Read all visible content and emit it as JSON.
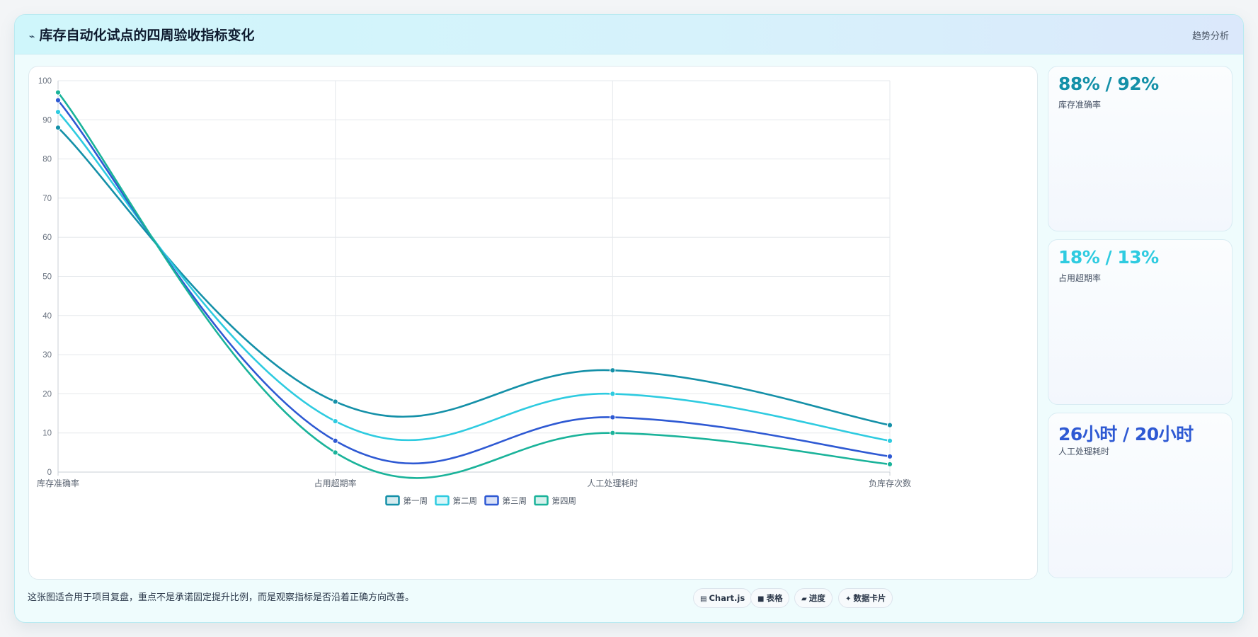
{
  "header": {
    "icon": "trend-icon",
    "title": "库存自动化试点的四周验收指标变化",
    "badge": "趋势分析"
  },
  "chart_data": {
    "type": "line",
    "categories": [
      "库存准确率",
      "占用超期率",
      "人工处理耗时",
      "负库存次数"
    ],
    "series": [
      {
        "name": "第一周",
        "color": "#1490a8",
        "values": [
          88,
          18,
          26,
          12
        ]
      },
      {
        "name": "第二周",
        "color": "#2ecbe0",
        "values": [
          92,
          13,
          20,
          8
        ]
      },
      {
        "name": "第三周",
        "color": "#2e59d3",
        "values": [
          95,
          8,
          14,
          4
        ]
      },
      {
        "name": "第四周",
        "color": "#1ab39a",
        "values": [
          97,
          5,
          10,
          2
        ]
      }
    ],
    "ylim": [
      0,
      100
    ],
    "yticks": [
      0,
      10,
      20,
      30,
      40,
      50,
      60,
      70,
      80,
      90,
      100
    ],
    "grid": true,
    "legend": "bottom"
  },
  "side_cards": [
    {
      "value": "88% / 92%",
      "label": "库存准确率",
      "color": "#1490a8"
    },
    {
      "value": "18% / 13%",
      "label": "占用超期率",
      "color": "#2ecbe0"
    },
    {
      "value": "26小时 / 20小时",
      "label": "人工处理耗时",
      "color": "#2e59d3"
    }
  ],
  "footer": {
    "note": "这张图适合用于项目复盘，重点不是承诺固定提升比例，而是观察指标是否沿着正确方向改善。",
    "chips": [
      {
        "icon": "chart-icon",
        "glyph": "▤",
        "label": "Chart.js"
      },
      {
        "icon": "table-icon",
        "glyph": "■",
        "label": "表格"
      },
      {
        "icon": "progress-icon",
        "glyph": "▰",
        "label": "进度"
      },
      {
        "icon": "card-icon",
        "glyph": "✦",
        "label": "数据卡片"
      }
    ]
  }
}
